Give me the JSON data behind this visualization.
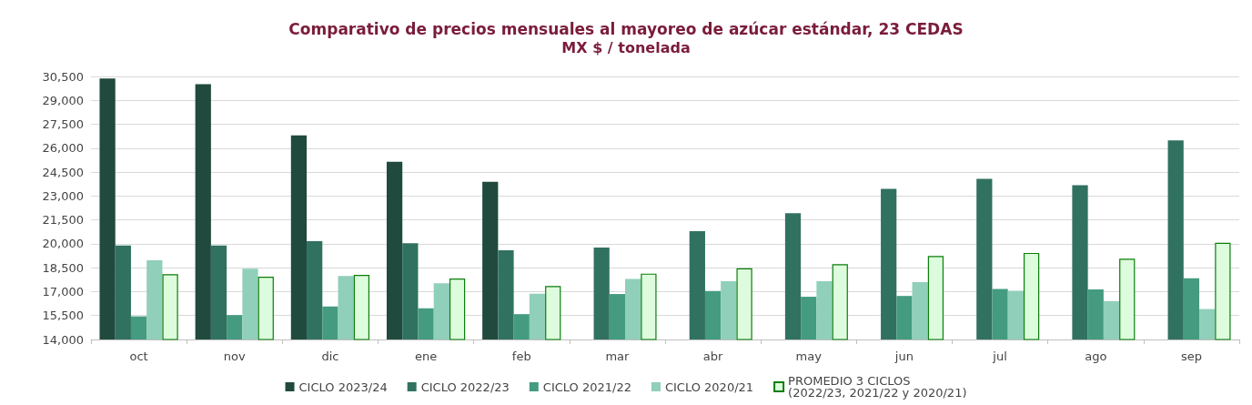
{
  "chart_data": {
    "type": "bar",
    "title": "Comparativo de precios mensuales al mayoreo de azúcar estándar, 23 CEDAS",
    "subtitle": "MX $ / tonelada",
    "categories": [
      "oct",
      "nov",
      "dic",
      "ene",
      "feb",
      "mar",
      "abr",
      "may",
      "jun",
      "jul",
      "ago",
      "sep"
    ],
    "series": [
      {
        "name": "CICLO 2023/24",
        "color": "#204a3e",
        "values": [
          30370,
          30020,
          26810,
          25150,
          23890,
          null,
          null,
          null,
          null,
          null,
          null,
          null
        ]
      },
      {
        "name": "CICLO 2022/23",
        "color": "#317160",
        "values": [
          19890,
          19890,
          20160,
          20040,
          19600,
          19770,
          20790,
          21920,
          23450,
          24080,
          23680,
          26490
        ]
      },
      {
        "name": "CICLO 2021/22",
        "color": "#449b80",
        "values": [
          15450,
          15530,
          16070,
          15950,
          15590,
          16850,
          17040,
          16680,
          16730,
          17170,
          17140,
          17840
        ]
      },
      {
        "name": "CICLO 2020/21",
        "color": "#90cfb9",
        "values": [
          18970,
          18440,
          17980,
          17520,
          16870,
          17790,
          17650,
          17650,
          17600,
          17060,
          16410,
          15910
        ]
      },
      {
        "name": "PROMEDIO 3 CICLOS\n(2022/23, 2021/22 y 2020/21)",
        "color": "#ddfcdd",
        "values": [
          18090,
          17940,
          18050,
          17820,
          17350,
          18130,
          18470,
          18720,
          19240,
          19430,
          19070,
          20060
        ]
      }
    ],
    "ylim": [
      14000,
      30500
    ],
    "yticks": [
      {
        "value": 14000,
        "label": "14,000"
      },
      {
        "value": 15500,
        "label": "15,500"
      },
      {
        "value": 17000,
        "label": "17,000"
      },
      {
        "value": 18500,
        "label": "18,500"
      },
      {
        "value": 20000,
        "label": "20,000"
      },
      {
        "value": 21500,
        "label": "21,500"
      },
      {
        "value": 23000,
        "label": "23,000"
      },
      {
        "value": 24500,
        "label": "24,500"
      },
      {
        "value": 26000,
        "label": "26,000"
      },
      {
        "value": 27500,
        "label": "27,500"
      },
      {
        "value": 29000,
        "label": "29,000"
      },
      {
        "value": 30500,
        "label": "30,500"
      }
    ],
    "grid": "y",
    "legend": "bottom"
  }
}
